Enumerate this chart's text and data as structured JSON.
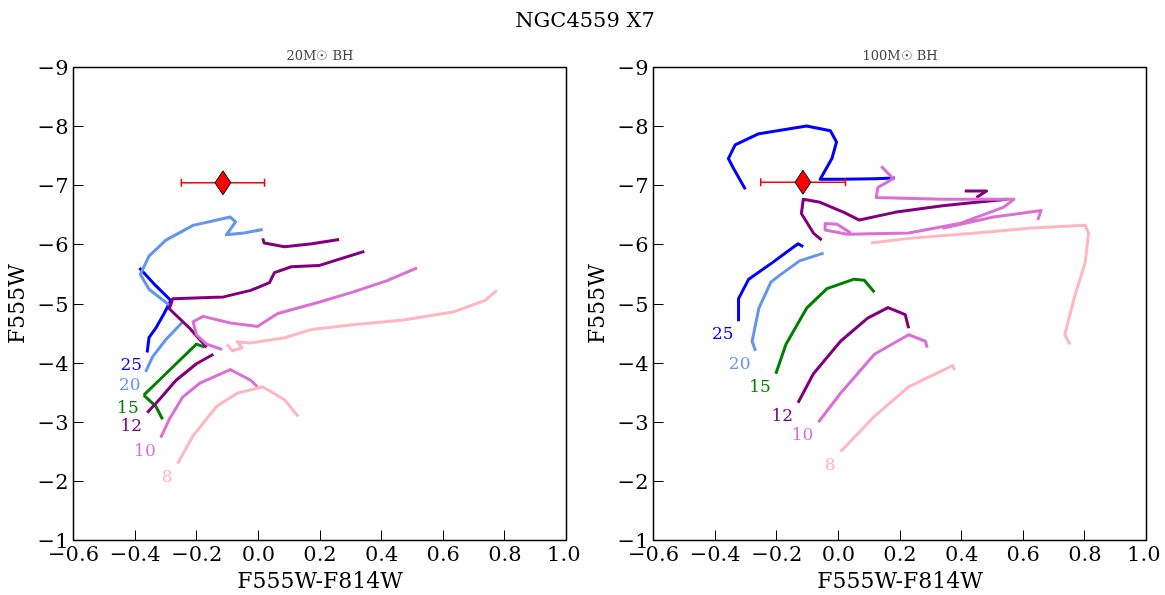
{
  "chart_data": [
    {
      "type": "line",
      "title": "NGC4559 X7",
      "subtitle": "20M☉ BH",
      "xlabel": "F555W-F814W",
      "ylabel": "F555W",
      "xlim": [
        -0.6,
        1.0
      ],
      "ylim": [
        -1,
        -9
      ],
      "grid": false,
      "xticks": [
        {
          "value": -0.6,
          "label": "−0.6"
        },
        {
          "value": -0.4,
          "label": "−0.4"
        },
        {
          "value": -0.2,
          "label": "−0.2"
        },
        {
          "value": 0.0,
          "label": "0.0"
        },
        {
          "value": 0.2,
          "label": "0.2"
        },
        {
          "value": 0.4,
          "label": "0.4"
        },
        {
          "value": 0.6,
          "label": "0.6"
        },
        {
          "value": 0.8,
          "label": "0.8"
        },
        {
          "value": 1.0,
          "label": "1.0"
        }
      ],
      "yticks": [
        {
          "value": -1,
          "label": "−1"
        },
        {
          "value": -2,
          "label": "−2"
        },
        {
          "value": -3,
          "label": "−3"
        },
        {
          "value": -4,
          "label": "−4"
        },
        {
          "value": -5,
          "label": "−5"
        },
        {
          "value": -6,
          "label": "−6"
        },
        {
          "value": -7,
          "label": "−7"
        },
        {
          "value": -8,
          "label": "−8"
        },
        {
          "value": -9,
          "label": "−9"
        }
      ],
      "series": [
        {
          "name": "25",
          "color": "#0000ff",
          "x": [
            -0.361,
            -0.355,
            -0.333,
            -0.306,
            -0.284,
            -0.333,
            -0.386
          ],
          "values": [
            -4.18,
            -4.43,
            -4.59,
            -4.84,
            -5.06,
            -5.31,
            -5.61
          ]
        },
        {
          "name": "20",
          "color": "#6495ed",
          "x": [
            -0.366,
            -0.344,
            -0.3,
            -0.245,
            null,
            -0.289,
            -0.355,
            -0.383,
            -0.355,
            -0.3,
            -0.212,
            -0.091,
            -0.074,
            -0.104,
            -0.047,
            0.014
          ],
          "values": [
            -3.85,
            -4.1,
            -4.4,
            -4.7,
            null,
            -4.98,
            -5.25,
            -5.5,
            -5.81,
            -6.08,
            -6.33,
            -6.47,
            -6.39,
            -6.17,
            -6.2,
            -6.26
          ]
        },
        {
          "name": "15",
          "color": "#008000",
          "x": [
            -0.372,
            -0.322,
            -0.267,
            -0.201,
            -0.174,
            null,
            -0.372,
            -0.333,
            -0.311
          ],
          "values": [
            -3.46,
            -3.71,
            -3.99,
            -4.32,
            -4.27,
            null,
            -3.46,
            -3.27,
            -3.05
          ]
        },
        {
          "name": "12",
          "color": "#800080",
          "x": [
            -0.361,
            -0.322,
            -0.267,
            -0.201,
            -0.146,
            null,
            -0.168,
            -0.223,
            -0.289,
            -0.278,
            -0.113,
            -0.025,
            0.036,
            0.052,
            0.107,
            0.196,
            0.344,
            null,
            0.014,
            0.019,
            0.085,
            0.174,
            0.262
          ],
          "values": [
            -3.16,
            -3.38,
            -3.71,
            -3.99,
            -4.15,
            null,
            -4.27,
            -4.59,
            -4.92,
            -5.09,
            -5.12,
            -5.23,
            -5.36,
            -5.53,
            -5.63,
            -5.65,
            -5.89,
            null,
            -6.11,
            -6.03,
            -5.97,
            -6.02,
            -6.09
          ]
        },
        {
          "name": "10",
          "color": "#da70d6",
          "x": [
            -0.317,
            -0.289,
            -0.245,
            -0.19,
            -0.091,
            -0.025,
            -0.003,
            null,
            -0.118,
            -0.168,
            -0.201,
            -0.212,
            -0.179,
            -0.091,
            -0.003,
            0.063,
            0.196,
            0.306,
            0.416,
            0.515
          ],
          "values": [
            -2.74,
            -3.05,
            -3.43,
            -3.66,
            -3.89,
            -3.71,
            -3.6,
            null,
            -4.23,
            -4.32,
            -4.48,
            -4.7,
            -4.79,
            -4.68,
            -4.62,
            -4.84,
            -5.03,
            -5.2,
            -5.39,
            -5.61
          ]
        },
        {
          "name": "8",
          "color": "#ffb6c1",
          "x": [
            -0.262,
            -0.212,
            -0.135,
            -0.069,
            0.014,
            0.085,
            0.129,
            null,
            -0.102,
            -0.085,
            -0.052,
            -0.069,
            -0.025,
            0.085,
            0.174,
            0.306,
            0.471,
            0.636,
            0.736,
            0.774
          ],
          "values": [
            -2.3,
            -2.77,
            -3.27,
            -3.49,
            -3.6,
            -3.38,
            -3.1,
            null,
            -4.32,
            -4.21,
            -4.26,
            -4.36,
            -4.34,
            -4.43,
            -4.57,
            -4.65,
            -4.73,
            -4.87,
            -5.06,
            -5.23
          ]
        },
        {
          "type": "scatter",
          "marker": "diamond",
          "color": "#ff0000",
          "x": [
            -0.115
          ],
          "values": [
            -7.05
          ],
          "xerrors": [
            [
              -0.25,
              0.02
            ]
          ]
        }
      ]
    },
    {
      "type": "line",
      "subtitle": "100M☉ BH",
      "xlabel": "F555W-F814W",
      "ylabel": "F555W",
      "xlim": [
        -0.6,
        1.0
      ],
      "ylim": [
        -1,
        -9
      ],
      "grid": false,
      "xticks": [
        {
          "value": -0.6,
          "label": "−0.6"
        },
        {
          "value": -0.4,
          "label": "−0.4"
        },
        {
          "value": -0.2,
          "label": "−0.2"
        },
        {
          "value": 0.0,
          "label": "0.0"
        },
        {
          "value": 0.2,
          "label": "0.2"
        },
        {
          "value": 0.4,
          "label": "0.4"
        },
        {
          "value": 0.6,
          "label": "0.6"
        },
        {
          "value": 0.8,
          "label": "0.8"
        },
        {
          "value": 1.0,
          "label": "1.0"
        }
      ],
      "yticks": [
        {
          "value": -1,
          "label": "−1"
        },
        {
          "value": -2,
          "label": "−2"
        },
        {
          "value": -3,
          "label": "−3"
        },
        {
          "value": -4,
          "label": "−4"
        },
        {
          "value": -5,
          "label": "−5"
        },
        {
          "value": -6,
          "label": "−6"
        },
        {
          "value": -7,
          "label": "−7"
        },
        {
          "value": -8,
          "label": "−8"
        },
        {
          "value": -9,
          "label": "−9"
        }
      ],
      "series": [
        {
          "name": "25",
          "color": "#0000ff",
          "x": [
            -0.324,
            -0.324,
            -0.291,
            -0.214,
            -0.131,
            -0.114,
            null,
            -0.302,
            -0.341,
            -0.357,
            -0.335,
            -0.258,
            -0.103,
            -0.026,
            -0.006,
            -0.021,
            -0.059,
            0.007,
            0.117,
            0.183
          ],
          "values": [
            -4.71,
            -5.09,
            -5.42,
            -5.7,
            -6.02,
            -5.97,
            null,
            -6.94,
            -7.3,
            -7.46,
            -7.69,
            -7.88,
            -8.01,
            -7.93,
            -7.74,
            -7.46,
            -7.11,
            -7.11,
            -7.12,
            -7.13
          ]
        },
        {
          "name": "20",
          "color": "#6495ed",
          "x": [
            -0.269,
            -0.28,
            -0.258,
            -0.219,
            -0.192,
            -0.126,
            -0.048
          ],
          "values": [
            -4.21,
            -4.37,
            -4.93,
            -5.37,
            -5.48,
            -5.73,
            -5.86
          ]
        },
        {
          "name": "15",
          "color": "#008000",
          "x": [
            -0.203,
            -0.17,
            -0.103,
            -0.037,
            0.051,
            0.084,
            0.117
          ],
          "values": [
            -3.82,
            -4.32,
            -4.93,
            -5.26,
            -5.42,
            -5.4,
            -5.2
          ]
        },
        {
          "name": "12",
          "color": "#800080",
          "x": [
            -0.131,
            -0.081,
            0.007,
            0.095,
            0.161,
            0.217,
            0.228,
            null,
            -0.054,
            -0.081,
            -0.12,
            -0.114,
            -0.059,
            0.018,
            0.068,
            0.183,
            0.338,
            0.448,
            0.548,
            null,
            0.41,
            0.481,
            0.448
          ],
          "values": [
            -3.33,
            -3.82,
            -4.37,
            -4.76,
            -4.94,
            -4.82,
            -4.59,
            null,
            -6.08,
            -6.2,
            -6.53,
            -6.77,
            -6.72,
            -6.55,
            -6.42,
            -6.55,
            -6.66,
            -6.72,
            -6.77,
            null,
            -6.91,
            -6.91,
            -6.8
          ]
        },
        {
          "name": "10",
          "color": "#da70d6",
          "x": [
            -0.065,
            0.007,
            0.117,
            0.228,
            0.283,
            0.288,
            null,
            0.139,
            0.178,
            0.128,
            0.123,
            0.338,
            0.57,
            0.537,
            0.393,
            0.228,
            0.029,
            -0.043,
            -0.043,
            -0.004,
            0.04,
            null,
            0.338,
            0.503,
            0.658,
            0.647
          ],
          "values": [
            -3.0,
            -3.49,
            -4.15,
            -4.48,
            -4.37,
            -4.26,
            null,
            -7.33,
            -7.12,
            -6.97,
            -6.8,
            -6.77,
            -6.77,
            -6.64,
            -6.36,
            -6.2,
            -6.18,
            -6.25,
            -6.36,
            -6.35,
            -6.2,
            null,
            -6.28,
            -6.47,
            -6.58,
            -6.42
          ]
        },
        {
          "name": "8",
          "color": "#ffb6c1",
          "x": [
            0.007,
            0.117,
            0.228,
            0.371,
            0.377,
            null,
            0.106,
            0.228,
            0.448,
            0.614,
            0.801,
            0.812,
            0.801,
            0.768,
            0.735,
            0.752
          ],
          "values": [
            -2.5,
            -3.1,
            -3.6,
            -3.96,
            -3.88,
            null,
            -6.03,
            -6.11,
            -6.2,
            -6.28,
            -6.33,
            -6.2,
            -5.7,
            -5.15,
            -4.48,
            -4.32
          ]
        },
        {
          "type": "scatter",
          "marker": "diamond",
          "color": "#ff0000",
          "x": [
            -0.115
          ],
          "values": [
            -7.06
          ],
          "xerrors": [
            [
              -0.252,
              0.023
            ]
          ]
        }
      ]
    }
  ]
}
